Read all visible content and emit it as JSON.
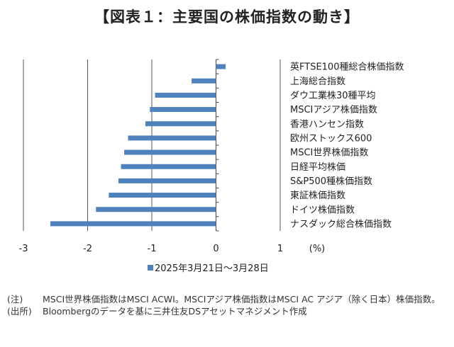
{
  "title": "【図表１：主要国の株価指数の動き】",
  "chart_data": {
    "type": "bar",
    "orientation": "horizontal",
    "categories": [
      "英FTSE100種総合株価指数",
      "上海総合指数",
      "ダウ工業株30種平均",
      "MSCIアジア株価指数",
      "香港ハンセン指数",
      "欧州ストックス600",
      "MSCI世界株価指数",
      "日経平均株価",
      "S&P500種株価指数",
      "東証株価指数",
      "ドイツ株価指数",
      "ナスダック総合株価指数"
    ],
    "series": [
      {
        "name": "2025年3月21日～3月28日",
        "values": [
          0.15,
          -0.38,
          -0.95,
          -1.03,
          -1.1,
          -1.37,
          -1.43,
          -1.48,
          -1.52,
          -1.67,
          -1.87,
          -2.58
        ],
        "color": "#4f81bd"
      }
    ],
    "xlim": [
      -3,
      1
    ],
    "xticks": [
      "-3",
      "-2",
      "-1",
      "0",
      "1"
    ],
    "xunit": "(%)",
    "grid": true,
    "legend_position": "bottom"
  },
  "notes": [
    {
      "tag": "(注)",
      "text": "MSCI世界株価指数はMSCI ACWI。MSCIアジア株価指数はMSCI AC アジア（除く日本）株価指数。"
    },
    {
      "tag": "(出所)",
      "text": "Bloombergのデータを基に三井住友DSアセットマネジメント作成"
    }
  ]
}
